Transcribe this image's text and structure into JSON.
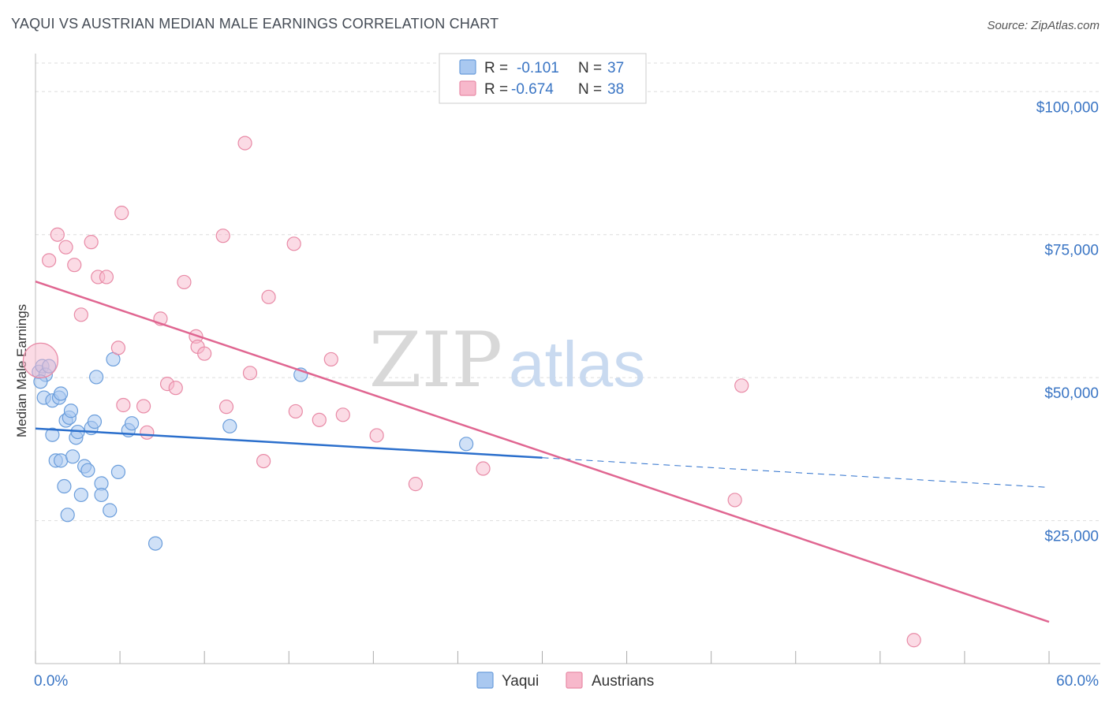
{
  "title": "YAQUI VS AUSTRIAN MEDIAN MALE EARNINGS CORRELATION CHART",
  "source": "Source: ZipAtlas.com",
  "watermark": {
    "zip": "ZIP",
    "atlas": "atlas"
  },
  "legend_top": [
    {
      "r_label": "R =",
      "r_value": "-0.101",
      "n_label": "N =",
      "n_value": "37"
    },
    {
      "r_label": "R =",
      "r_value": "-0.674",
      "n_label": "N =",
      "n_value": "38"
    }
  ],
  "colors": {
    "yaqui_fill": "#a9c8f0",
    "yaqui_stroke": "#6a9ddb",
    "yaqui_line": "#2b6fcc",
    "aus_fill": "#f7b8cb",
    "aus_stroke": "#e88aa6",
    "aus_line": "#e06691",
    "axis_text": "#3a75c4",
    "grid": "#dddddd"
  },
  "chart_data": {
    "type": "scatter",
    "title": "YAQUI VS AUSTRIAN MEDIAN MALE EARNINGS CORRELATION CHART",
    "xlabel": "",
    "ylabel": "Median Male Earnings",
    "xlim": [
      0,
      60
    ],
    "ylim": [
      0,
      105000
    ],
    "x_tick_labels": [
      {
        "value": 0,
        "label": "0.0%"
      },
      {
        "value": 60,
        "label": "60.0%"
      }
    ],
    "y_ticks": [
      {
        "value": 25000,
        "label": "$25,000"
      },
      {
        "value": 50000,
        "label": "$50,000"
      },
      {
        "value": 75000,
        "label": "$75,000"
      },
      {
        "value": 100000,
        "label": "$100,000"
      }
    ],
    "legend": [
      "Yaqui",
      "Austrians"
    ],
    "series": [
      {
        "name": "Yaqui",
        "r": -0.101,
        "n": 37,
        "trend": {
          "x0": 0,
          "y0": 41100,
          "x1": 30,
          "y1": 36000,
          "dash_to_x": 60,
          "dash_to_y": 30800
        },
        "points": [
          [
            0.2,
            51000
          ],
          [
            0.4,
            52000
          ],
          [
            0.6,
            50500
          ],
          [
            0.5,
            46500
          ],
          [
            0.8,
            52000
          ],
          [
            1.0,
            46000
          ],
          [
            1.0,
            40000
          ],
          [
            1.2,
            35500
          ],
          [
            1.4,
            46500
          ],
          [
            1.5,
            47200
          ],
          [
            1.5,
            35500
          ],
          [
            1.7,
            31000
          ],
          [
            1.8,
            42500
          ],
          [
            1.9,
            26000
          ],
          [
            2.0,
            43000
          ],
          [
            2.1,
            44200
          ],
          [
            2.2,
            36200
          ],
          [
            2.4,
            39500
          ],
          [
            2.5,
            40500
          ],
          [
            2.7,
            29500
          ],
          [
            2.9,
            34500
          ],
          [
            3.1,
            33800
          ],
          [
            3.3,
            41200
          ],
          [
            3.5,
            42300
          ],
          [
            3.6,
            50100
          ],
          [
            3.9,
            31500
          ],
          [
            3.9,
            29500
          ],
          [
            4.4,
            26800
          ],
          [
            4.6,
            53200
          ],
          [
            4.9,
            33500
          ],
          [
            5.5,
            40800
          ],
          [
            5.7,
            42000
          ],
          [
            7.1,
            21000
          ],
          [
            11.5,
            41500
          ],
          [
            15.7,
            50500
          ],
          [
            25.5,
            38400
          ],
          [
            0.3,
            49300
          ]
        ]
      },
      {
        "name": "Austrians",
        "r": -0.674,
        "n": 38,
        "trend": {
          "x0": 0,
          "y0": 66800,
          "x1": 60,
          "y1": 7300
        },
        "points": [
          [
            0.3,
            53000
          ],
          [
            0.8,
            70500
          ],
          [
            1.3,
            75000
          ],
          [
            1.8,
            72800
          ],
          [
            2.3,
            69700
          ],
          [
            2.7,
            61000
          ],
          [
            3.3,
            73700
          ],
          [
            3.7,
            67600
          ],
          [
            4.2,
            67600
          ],
          [
            4.9,
            55200
          ],
          [
            5.1,
            78800
          ],
          [
            5.2,
            45200
          ],
          [
            6.4,
            45000
          ],
          [
            6.6,
            40400
          ],
          [
            7.4,
            60300
          ],
          [
            7.8,
            48900
          ],
          [
            8.3,
            48200
          ],
          [
            8.8,
            66700
          ],
          [
            9.5,
            57200
          ],
          [
            9.6,
            55400
          ],
          [
            10.0,
            54200
          ],
          [
            11.1,
            74800
          ],
          [
            11.3,
            44900
          ],
          [
            12.4,
            91000
          ],
          [
            12.7,
            50800
          ],
          [
            13.5,
            35400
          ],
          [
            13.8,
            64100
          ],
          [
            15.3,
            73400
          ],
          [
            15.4,
            44100
          ],
          [
            16.8,
            42600
          ],
          [
            17.5,
            53200
          ],
          [
            18.2,
            43500
          ],
          [
            20.2,
            39900
          ],
          [
            22.5,
            31400
          ],
          [
            26.5,
            34100
          ],
          [
            41.4,
            28600
          ],
          [
            41.8,
            48600
          ],
          [
            52.0,
            4100
          ]
        ]
      }
    ]
  }
}
